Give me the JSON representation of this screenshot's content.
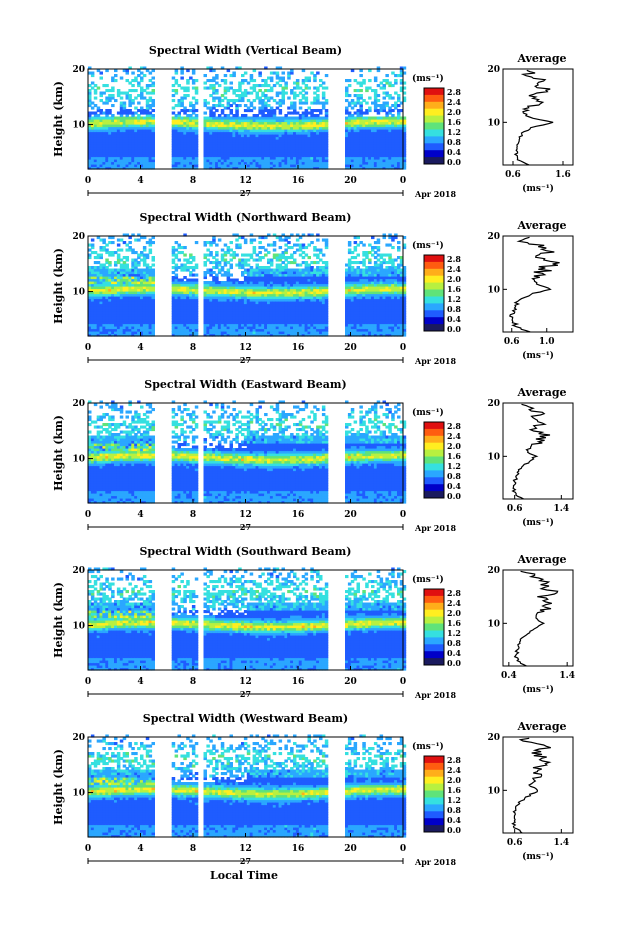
{
  "figure": {
    "xlabel": "Local Time",
    "date_label": "Apr 2018",
    "day_label": "27"
  },
  "colorbar": {
    "unit": "(ms⁻¹)",
    "ticks": [
      "2.8",
      "2.4",
      "2.0",
      "1.6",
      "1.2",
      "0.8",
      "0.4",
      "0.0"
    ],
    "colors": [
      "#1a1a5e",
      "#0000c8",
      "#1f5cff",
      "#2aa7ff",
      "#35e0e0",
      "#5fe37a",
      "#b8f040",
      "#ffee20",
      "#ffae1a",
      "#ff5c10",
      "#e01010"
    ]
  },
  "chart_data": [
    {
      "type": "heatmap",
      "title": "Spectral Width (Vertical Beam)",
      "ylabel": "Height (km)",
      "x_ticks": [
        "0",
        "4",
        "8",
        "12",
        "16",
        "20",
        "0"
      ],
      "y_ticks": [
        "20",
        "10"
      ],
      "xlim": [
        0,
        24
      ],
      "ylim": [
        2,
        20
      ],
      "data_gaps_hours": [
        [
          5.0,
          6.2
        ],
        [
          8.3,
          8.6
        ],
        [
          18.2,
          19.4
        ]
      ],
      "avg_profile": {
        "title": "Average",
        "xlabel": "(ms⁻¹)",
        "x_ticks": [
          "0.6",
          "1.6"
        ],
        "y_ticks": [
          "20",
          "10"
        ],
        "xlim": [
          0.4,
          1.8
        ],
        "heights": [
          2,
          3,
          4,
          5,
          6,
          7,
          8,
          9,
          10,
          11,
          12,
          13,
          14,
          15,
          16,
          17,
          18,
          19,
          20
        ],
        "values": [
          0.9,
          0.7,
          0.65,
          0.7,
          0.7,
          0.72,
          0.8,
          0.95,
          1.4,
          0.9,
          0.8,
          0.95,
          1.2,
          1.0,
          1.3,
          1.1,
          1.2,
          0.9,
          1.0
        ]
      }
    },
    {
      "type": "heatmap",
      "title": "Spectral Width (Northward Beam)",
      "ylabel": "Height (km)",
      "x_ticks": [
        "0",
        "4",
        "8",
        "12",
        "16",
        "20",
        "0"
      ],
      "y_ticks": [
        "20",
        "10"
      ],
      "xlim": [
        0,
        24
      ],
      "ylim": [
        2,
        20
      ],
      "data_gaps_hours": [
        [
          5.0,
          6.2
        ],
        [
          8.3,
          8.6
        ],
        [
          18.2,
          19.4
        ]
      ],
      "avg_profile": {
        "title": "Average",
        "xlabel": "(ms⁻¹)",
        "x_ticks": [
          "0.6",
          "1.0"
        ],
        "y_ticks": [
          "20",
          "10"
        ],
        "xlim": [
          0.5,
          1.3
        ],
        "heights": [
          2,
          3,
          4,
          5,
          6,
          7,
          8,
          9,
          10,
          11,
          12,
          13,
          14,
          15,
          16,
          17,
          18,
          19,
          20
        ],
        "values": [
          0.8,
          0.65,
          0.62,
          0.6,
          0.62,
          0.63,
          0.7,
          0.8,
          1.05,
          0.9,
          0.85,
          0.95,
          1.0,
          1.05,
          0.98,
          1.02,
          0.95,
          0.75,
          0.7
        ]
      }
    },
    {
      "type": "heatmap",
      "title": "Spectral Width (Eastward Beam)",
      "ylabel": "Height (km)",
      "x_ticks": [
        "0",
        "4",
        "8",
        "12",
        "16",
        "20",
        "0"
      ],
      "y_ticks": [
        "20",
        "10"
      ],
      "xlim": [
        0,
        24
      ],
      "ylim": [
        2,
        20
      ],
      "data_gaps_hours": [
        [
          5.0,
          6.2
        ],
        [
          8.3,
          8.6
        ],
        [
          18.2,
          19.4
        ]
      ],
      "avg_profile": {
        "title": "Average",
        "xlabel": "(ms⁻¹)",
        "x_ticks": [
          "0.6",
          "1.4"
        ],
        "y_ticks": [
          "20",
          "10"
        ],
        "xlim": [
          0.4,
          1.6
        ],
        "heights": [
          2,
          3,
          4,
          5,
          6,
          7,
          8,
          9,
          10,
          11,
          12,
          13,
          14,
          15,
          16,
          17,
          18,
          19,
          20
        ],
        "values": [
          0.75,
          0.6,
          0.58,
          0.6,
          0.62,
          0.65,
          0.7,
          0.85,
          0.95,
          0.8,
          0.9,
          1.0,
          1.1,
          0.95,
          1.05,
          0.9,
          1.0,
          0.85,
          0.7
        ]
      }
    },
    {
      "type": "heatmap",
      "title": "Spectral Width (Southward Beam)",
      "ylabel": "Height (km)",
      "x_ticks": [
        "0",
        "4",
        "8",
        "12",
        "16",
        "20",
        "0"
      ],
      "y_ticks": [
        "20",
        "10"
      ],
      "xlim": [
        0,
        24
      ],
      "ylim": [
        2,
        20
      ],
      "data_gaps_hours": [
        [
          5.0,
          6.2
        ],
        [
          8.3,
          8.6
        ],
        [
          18.2,
          19.4
        ]
      ],
      "avg_profile": {
        "title": "Average",
        "xlabel": "(ms⁻¹)",
        "x_ticks": [
          "0.4",
          "1.4"
        ],
        "y_ticks": [
          "20",
          "10"
        ],
        "xlim": [
          0.3,
          1.5
        ],
        "heights": [
          2,
          3,
          4,
          5,
          6,
          7,
          8,
          9,
          10,
          11,
          12,
          13,
          14,
          15,
          16,
          17,
          18,
          19,
          20
        ],
        "values": [
          0.7,
          0.55,
          0.52,
          0.55,
          0.58,
          0.62,
          0.7,
          0.85,
          1.0,
          0.85,
          0.9,
          1.05,
          1.1,
          1.0,
          1.15,
          1.0,
          1.05,
          0.8,
          0.65
        ]
      }
    },
    {
      "type": "heatmap",
      "title": "Spectral Width (Westward Beam)",
      "ylabel": "Height (km)",
      "x_ticks": [
        "0",
        "4",
        "8",
        "12",
        "16",
        "20",
        "0"
      ],
      "y_ticks": [
        "20",
        "10"
      ],
      "xlim": [
        0,
        24
      ],
      "ylim": [
        2,
        20
      ],
      "data_gaps_hours": [
        [
          5.0,
          6.2
        ],
        [
          8.3,
          8.6
        ],
        [
          18.2,
          19.4
        ]
      ],
      "avg_profile": {
        "title": "Average",
        "xlabel": "(ms⁻¹)",
        "x_ticks": [
          "0.6",
          "1.4"
        ],
        "y_ticks": [
          "20",
          "10"
        ],
        "xlim": [
          0.4,
          1.6
        ],
        "heights": [
          2,
          3,
          4,
          5,
          6,
          7,
          8,
          9,
          10,
          11,
          12,
          13,
          14,
          15,
          16,
          17,
          18,
          19,
          20
        ],
        "values": [
          0.75,
          0.6,
          0.58,
          0.6,
          0.6,
          0.64,
          0.7,
          0.85,
          1.0,
          0.85,
          0.95,
          1.05,
          1.0,
          1.1,
          1.05,
          0.95,
          1.1,
          0.9,
          0.75
        ]
      }
    }
  ]
}
